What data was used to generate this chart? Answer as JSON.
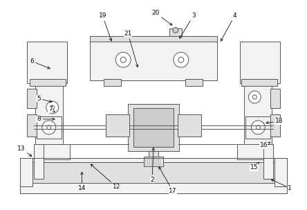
{
  "bg_color": "#ffffff",
  "line_color": "#555555",
  "figsize": [
    4.44,
    3.03
  ],
  "dpi": 100,
  "labels_pos": {
    "1": [
      420,
      272,
      390,
      258
    ],
    "2": [
      220,
      260,
      222,
      210
    ],
    "3": [
      280,
      22,
      258,
      58
    ],
    "4": [
      340,
      22,
      318,
      62
    ],
    "5": [
      55,
      142,
      78,
      148
    ],
    "6": [
      45,
      88,
      75,
      100
    ],
    "7": [
      72,
      158,
      82,
      163
    ],
    "8": [
      55,
      172,
      82,
      172
    ],
    "12": [
      168,
      270,
      128,
      235
    ],
    "13": [
      30,
      215,
      48,
      228
    ],
    "14": [
      118,
      272,
      118,
      245
    ],
    "15": [
      368,
      242,
      378,
      232
    ],
    "16": [
      382,
      210,
      395,
      204
    ],
    "17": [
      250,
      276,
      228,
      238
    ],
    "18": [
      405,
      175,
      382,
      178
    ],
    "19": [
      148,
      22,
      162,
      62
    ],
    "20": [
      225,
      18,
      252,
      38
    ],
    "21": [
      185,
      48,
      200,
      100
    ]
  }
}
